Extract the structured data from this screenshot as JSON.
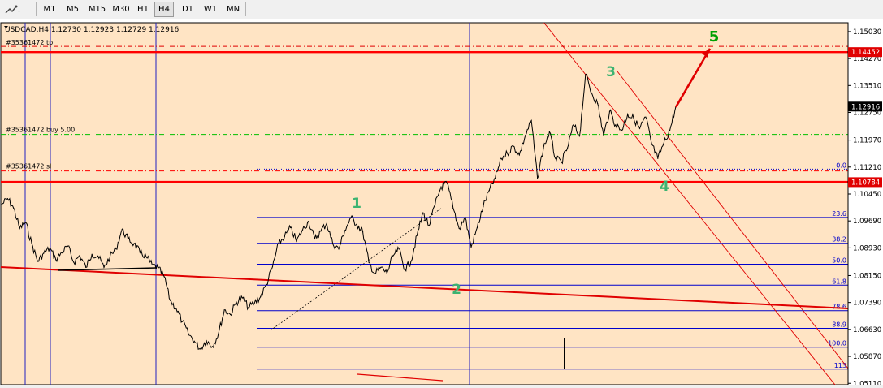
{
  "toolbar": {
    "timeframes": [
      "M1",
      "M5",
      "M15",
      "M30",
      "H1",
      "H4",
      "D1",
      "W1",
      "MN"
    ],
    "active": "H4",
    "tool_icon": "line-studies-icon"
  },
  "chart_data": {
    "type": "line",
    "symbol_header": "USDCAD,H4  1.12730 1.12923 1.12729 1.12916",
    "y_range": [
      1.0507,
      1.1528
    ],
    "y_ticks": [
      1.1503,
      1.1427,
      1.1351,
      1.1275,
      1.1197,
      1.1121,
      1.1045,
      1.0969,
      1.0893,
      1.0815,
      1.0739,
      1.0663,
      1.0587,
      1.0511
    ],
    "y_tick_labels": [
      "1.15030",
      "1.14270",
      "1.13510",
      "1.12750",
      "1.11970",
      "1.11210",
      "1.10450",
      "1.09690",
      "1.08930",
      "1.08150",
      "1.07390",
      "1.06630",
      "1.05870",
      "1.05110"
    ],
    "current_price": 1.12916,
    "current_price_label": "1.12916",
    "levels": [
      {
        "label": "#35361472 tp",
        "price": 1.14452,
        "tag": "1.14452",
        "color": "#ff0000"
      },
      {
        "label": "#35361472 buy 5.00",
        "price": 1.1213,
        "color": "#00c000"
      },
      {
        "label": "#35361472 sl",
        "price": 1.111,
        "color": "#ff0000"
      },
      {
        "label": "",
        "price": 1.10784,
        "tag": "1.10784",
        "color": "#ff0000"
      }
    ],
    "fibonacci": {
      "levels": [
        "0.0",
        "23.6",
        "38.2",
        "50.0",
        "61.8",
        "78.6",
        "88.9",
        "100.0",
        "113"
      ],
      "prices": [
        1.1115,
        1.0979,
        1.0906,
        1.0847,
        1.0788,
        1.0716,
        1.0666,
        1.0613,
        1.0551
      ]
    },
    "waves": [
      {
        "label": "1",
        "color": "#3cb371"
      },
      {
        "label": "2",
        "color": "#3cb371"
      },
      {
        "label": "3",
        "color": "#3cb371"
      },
      {
        "label": "4",
        "color": "#3cb371"
      },
      {
        "label": "5",
        "color": "#00a000"
      }
    ],
    "series": [
      {
        "values": [
          1.1015,
          1.1032,
          1.1005,
          1.0948,
          1.0965,
          1.0905,
          1.0855,
          1.0878,
          1.0892,
          1.086,
          1.088,
          1.0898,
          1.0852,
          1.0872,
          1.0838,
          1.0875,
          1.087,
          1.0838,
          1.0868,
          1.089,
          1.0945,
          1.0918,
          1.0905,
          1.088,
          1.0868,
          1.0845,
          1.0836,
          1.0812,
          1.0745,
          1.0722,
          1.0685,
          1.0652,
          1.063,
          1.0608,
          1.0632,
          1.0615,
          1.065,
          1.0718,
          1.0705,
          1.074,
          1.0752,
          1.0725,
          1.0738,
          1.0755,
          1.079,
          1.084,
          1.0905,
          1.0925,
          1.095,
          1.0912,
          1.0944,
          1.0968,
          1.0918,
          1.094,
          1.0962,
          1.0905,
          1.089,
          1.0942,
          1.0978,
          1.096,
          1.0938,
          1.0852,
          1.082,
          1.0838,
          1.0822,
          1.087,
          1.089,
          1.0832,
          1.0855,
          1.0928,
          1.0992,
          1.0955,
          1.1015,
          1.1065,
          1.1075,
          1.1005,
          1.0948,
          1.098,
          1.0895,
          1.095,
          1.101,
          1.1055,
          1.109,
          1.1145,
          1.116,
          1.118,
          1.1155,
          1.121,
          1.1252,
          1.109,
          1.1175,
          1.122,
          1.1145,
          1.1135,
          1.1175,
          1.124,
          1.1208,
          1.1382,
          1.133,
          1.13,
          1.121,
          1.1278,
          1.124,
          1.1225,
          1.127,
          1.1258,
          1.123,
          1.1262,
          1.1185,
          1.1145,
          1.1188,
          1.1225,
          1.1292
        ]
      }
    ],
    "trend_arrow": {
      "from": 1.129,
      "to": 1.1455
    }
  }
}
